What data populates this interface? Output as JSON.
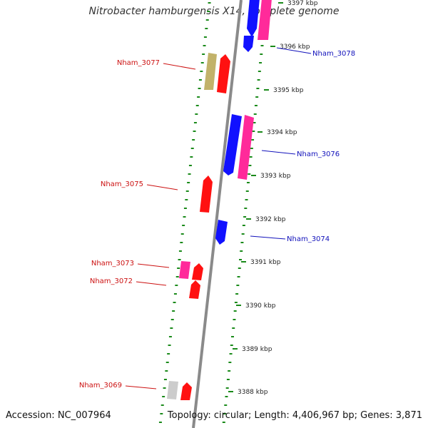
{
  "title": "Nitrobacter hamburgensis X14, complete genome",
  "footer": {
    "accession": "Accession: NC_007964",
    "summary": "Topology: circular; Length: 4,406,967 bp; Genes: 3,871"
  },
  "colors": {
    "backbone": "#888888",
    "ticks": "#1a8a1a",
    "label_red": "#cc1111",
    "label_blue": "#1111bb",
    "gene_red": "#ff1111",
    "gene_blue": "#1111ff",
    "gene_pink": "#ff2a9a",
    "gene_olive": "#c2b26a",
    "gene_gray": "#cccccc"
  },
  "scale_labels": [
    "3397 kbp",
    "3396 kbp",
    "3395 kbp",
    "3394 kbp",
    "3393 kbp",
    "3392 kbp",
    "3391 kbp",
    "3390 kbp",
    "3389 kbp",
    "3388 kbp"
  ],
  "gene_labels": [
    {
      "text": "Nham_3077",
      "strand": "left",
      "color": "red"
    },
    {
      "text": "Nham_3078",
      "strand": "right",
      "color": "blue"
    },
    {
      "text": "Nham_3076",
      "strand": "right",
      "color": "blue"
    },
    {
      "text": "Nham_3075",
      "strand": "left",
      "color": "red"
    },
    {
      "text": "Nham_3074",
      "strand": "right",
      "color": "blue"
    },
    {
      "text": "Nham_3073",
      "strand": "left",
      "color": "red"
    },
    {
      "text": "Nham_3072",
      "strand": "left",
      "color": "red"
    },
    {
      "text": "Nham_3069",
      "strand": "left",
      "color": "red"
    }
  ]
}
